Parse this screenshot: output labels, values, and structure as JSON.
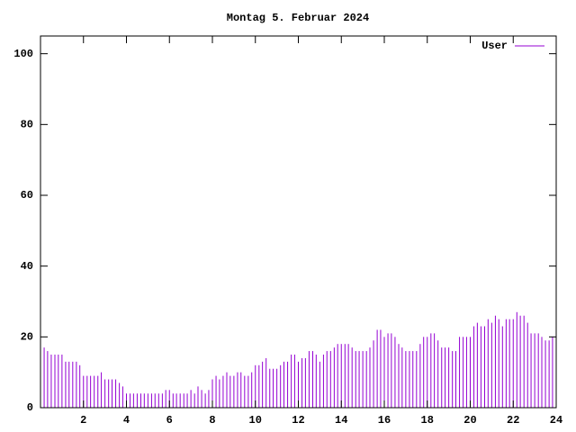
{
  "chart_data": {
    "type": "impulse",
    "title": "Montag 5. Februar 2024",
    "series": [
      {
        "name": "User",
        "color": "#9400d3",
        "values": [
          17,
          17,
          16,
          15,
          15,
          15,
          15,
          13,
          13,
          13,
          13,
          12,
          9,
          9,
          9,
          9,
          9,
          10,
          8,
          8,
          8,
          8,
          7,
          6,
          4,
          4,
          4,
          4,
          4,
          4,
          4,
          4,
          4,
          4,
          4,
          5,
          5,
          4,
          4,
          4,
          4,
          4,
          5,
          4,
          6,
          5,
          4,
          5,
          8,
          9,
          8,
          9,
          10,
          9,
          9,
          10,
          10,
          9,
          9,
          10,
          12,
          12,
          13,
          14,
          11,
          11,
          11,
          12,
          13,
          13,
          15,
          15,
          13,
          14,
          14,
          16,
          16,
          15,
          13,
          15,
          16,
          16,
          17,
          18,
          18,
          18,
          18,
          17,
          16,
          16,
          16,
          16,
          17,
          19,
          22,
          22,
          20,
          21,
          21,
          20,
          18,
          17,
          16,
          16,
          16,
          16,
          18,
          20,
          20,
          21,
          21,
          19,
          17,
          17,
          17,
          16,
          16,
          20,
          20,
          20,
          20,
          23,
          24,
          23,
          23,
          25,
          24,
          26,
          25,
          23,
          25,
          25,
          25,
          27,
          26,
          26,
          24,
          21,
          21,
          21,
          20,
          19,
          19,
          20
        ]
      }
    ],
    "x": [
      0,
      0.17,
      0.33,
      0.5,
      0.67,
      0.83,
      1,
      1.17,
      1.33,
      1.5,
      1.67,
      1.83,
      2,
      2.17,
      2.33,
      2.5,
      2.67,
      2.83,
      3,
      3.17,
      3.33,
      3.5,
      3.67,
      3.83,
      4,
      4.17,
      4.33,
      4.5,
      4.67,
      4.83,
      5,
      5.17,
      5.33,
      5.5,
      5.67,
      5.83,
      6,
      6.17,
      6.33,
      6.5,
      6.67,
      6.83,
      7,
      7.17,
      7.33,
      7.5,
      7.67,
      7.83,
      8,
      8.17,
      8.33,
      8.5,
      8.67,
      8.83,
      9,
      9.17,
      9.33,
      9.5,
      9.67,
      9.83,
      10,
      10.17,
      10.33,
      10.5,
      10.67,
      10.83,
      11,
      11.17,
      11.33,
      11.5,
      11.67,
      11.83,
      12,
      12.17,
      12.33,
      12.5,
      12.67,
      12.83,
      13,
      13.17,
      13.33,
      13.5,
      13.67,
      13.83,
      14,
      14.17,
      14.33,
      14.5,
      14.67,
      14.83,
      15,
      15.17,
      15.33,
      15.5,
      15.67,
      15.83,
      16,
      16.17,
      16.33,
      16.5,
      16.67,
      16.83,
      17,
      17.17,
      17.33,
      17.5,
      17.67,
      17.83,
      18,
      18.17,
      18.33,
      18.5,
      18.67,
      18.83,
      19,
      19.17,
      19.33,
      19.5,
      19.67,
      19.83,
      20,
      20.17,
      20.33,
      20.5,
      20.67,
      20.83,
      21,
      21.17,
      21.33,
      21.5,
      21.67,
      21.83,
      22,
      22.17,
      22.33,
      22.5,
      22.67,
      22.83,
      23,
      23.17,
      23.33,
      23.5,
      23.67,
      23.83
    ],
    "xlim": [
      0,
      24
    ],
    "xticks": [
      2,
      4,
      6,
      8,
      10,
      12,
      14,
      16,
      18,
      20,
      22,
      24
    ],
    "ylim": [
      0,
      105
    ],
    "yticks": [
      0,
      20,
      40,
      60,
      80,
      100
    ],
    "legend": "top-right"
  }
}
